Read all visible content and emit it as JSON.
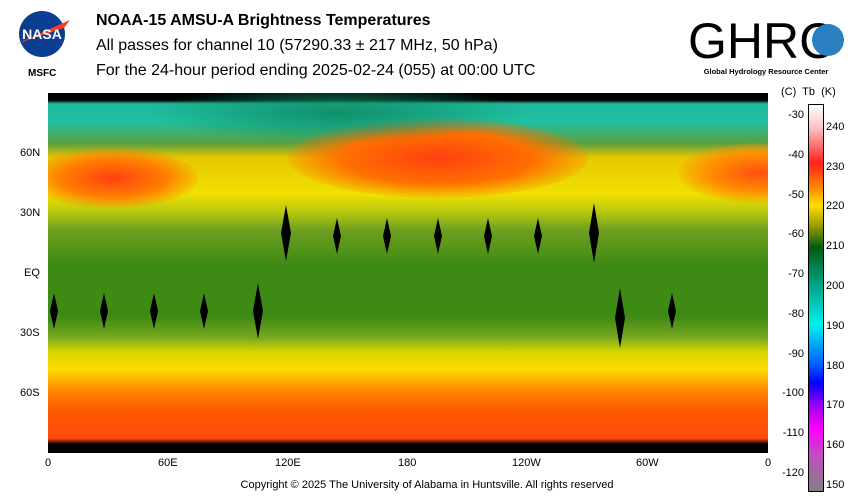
{
  "header": {
    "title": "NOAA-15 AMSU-A Brightness Temperatures",
    "subtitle": "All passes for channel 10 (57290.33 ± 217 MHz, 50 hPa)",
    "period": "For the 24-hour period ending 2025-02-24 (055) at 00:00 UTC"
  },
  "logos": {
    "nasa": "NASA",
    "msfc": "MSFC",
    "ghrc": "GHRC",
    "ghrc_sub": "Global Hydrology Resource Center"
  },
  "map": {
    "lat_labels": [
      "60N",
      "30N",
      "EQ",
      "30S",
      "60S"
    ],
    "lon_labels": [
      "0",
      "60E",
      "120E",
      "180",
      "120W",
      "60W",
      "0"
    ]
  },
  "colorbar": {
    "header": "(C)  Tb  (K)",
    "celsius": [
      "-30",
      "-40",
      "-50",
      "-60",
      "-70",
      "-80",
      "-90",
      "-100",
      "-110",
      "-120"
    ],
    "kelvin": [
      "240",
      "230",
      "220",
      "210",
      "200",
      "190",
      "180",
      "170",
      "160",
      "150"
    ],
    "range_k": [
      149,
      246
    ]
  },
  "footer": {
    "copyright": "Copyright © 2025 The University of Alabama in Huntsville.  All rights reserved"
  }
}
